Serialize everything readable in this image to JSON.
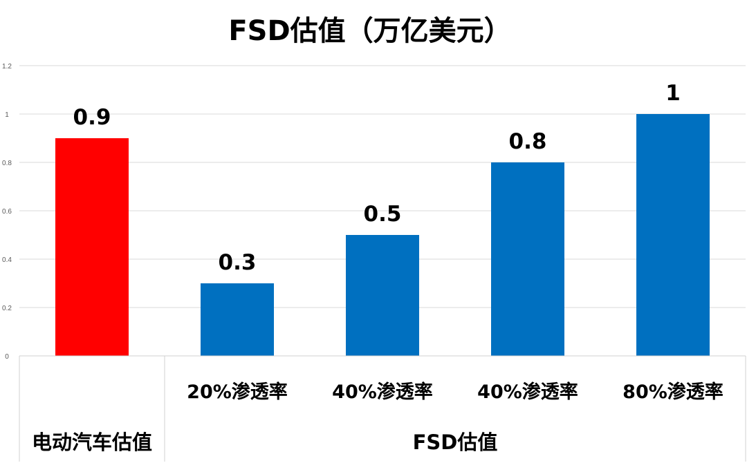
{
  "chart_data": {
    "type": "bar",
    "title": "FSD估值（万亿美元）",
    "categories": [
      "",
      "20%渗透率",
      "40%渗透率",
      "40%渗透率",
      "80%渗透率"
    ],
    "groups": [
      {
        "label": "电动汽车估值",
        "span": 1
      },
      {
        "label": "FSD估值",
        "span": 4
      }
    ],
    "values": [
      0.9,
      0.3,
      0.5,
      0.8,
      1
    ],
    "data_labels": [
      "0.9",
      "0.3",
      "0.5",
      "0.8",
      "1"
    ],
    "bar_colors": [
      "#ff0000",
      "#0070c0",
      "#0070c0",
      "#0070c0",
      "#0070c0"
    ],
    "ylim": [
      0,
      1.2
    ],
    "yticks": [
      0,
      0.2,
      0.4,
      0.6,
      0.8,
      1,
      1.2
    ],
    "ytick_labels": [
      "0",
      "0.2",
      "0.4",
      "0.6",
      "0.8",
      "1",
      "1.2"
    ],
    "grid": true,
    "legend": "none",
    "xlabel": "",
    "ylabel": ""
  }
}
